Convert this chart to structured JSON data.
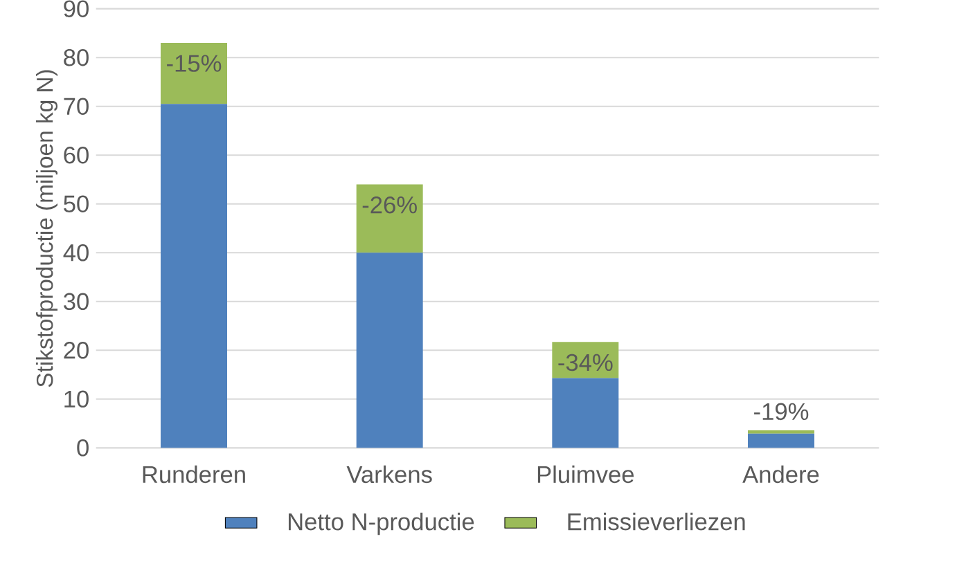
{
  "chart_data": {
    "type": "bar",
    "stacked": true,
    "ylabel": "Stikstofproductie (miljoen kg N)",
    "categories": [
      "Runderen",
      "Varkens",
      "Pluimvee",
      "Andere"
    ],
    "series": [
      {
        "name": "Netto N-productie",
        "color": "#4f81bd",
        "values": [
          70.5,
          40,
          14.3,
          2.9
        ]
      },
      {
        "name": "Emissieverliezen",
        "color": "#9bbb59",
        "values": [
          12.5,
          14,
          7.4,
          0.7
        ]
      }
    ],
    "annotations": [
      {
        "text": "-15%",
        "x": "Runderen",
        "y": 83
      },
      {
        "text": "-26%",
        "x": "Varkens",
        "y": 54
      },
      {
        "text": "-34%",
        "x": "Pluimvee",
        "y": 21.7
      },
      {
        "text": "-19%",
        "x": "Andere",
        "y": 3.6
      }
    ],
    "ylim": [
      0,
      90
    ],
    "yticks": [
      0,
      10,
      20,
      30,
      40,
      50,
      60,
      70,
      80,
      90
    ],
    "grid": "y",
    "legend": "bottom"
  }
}
